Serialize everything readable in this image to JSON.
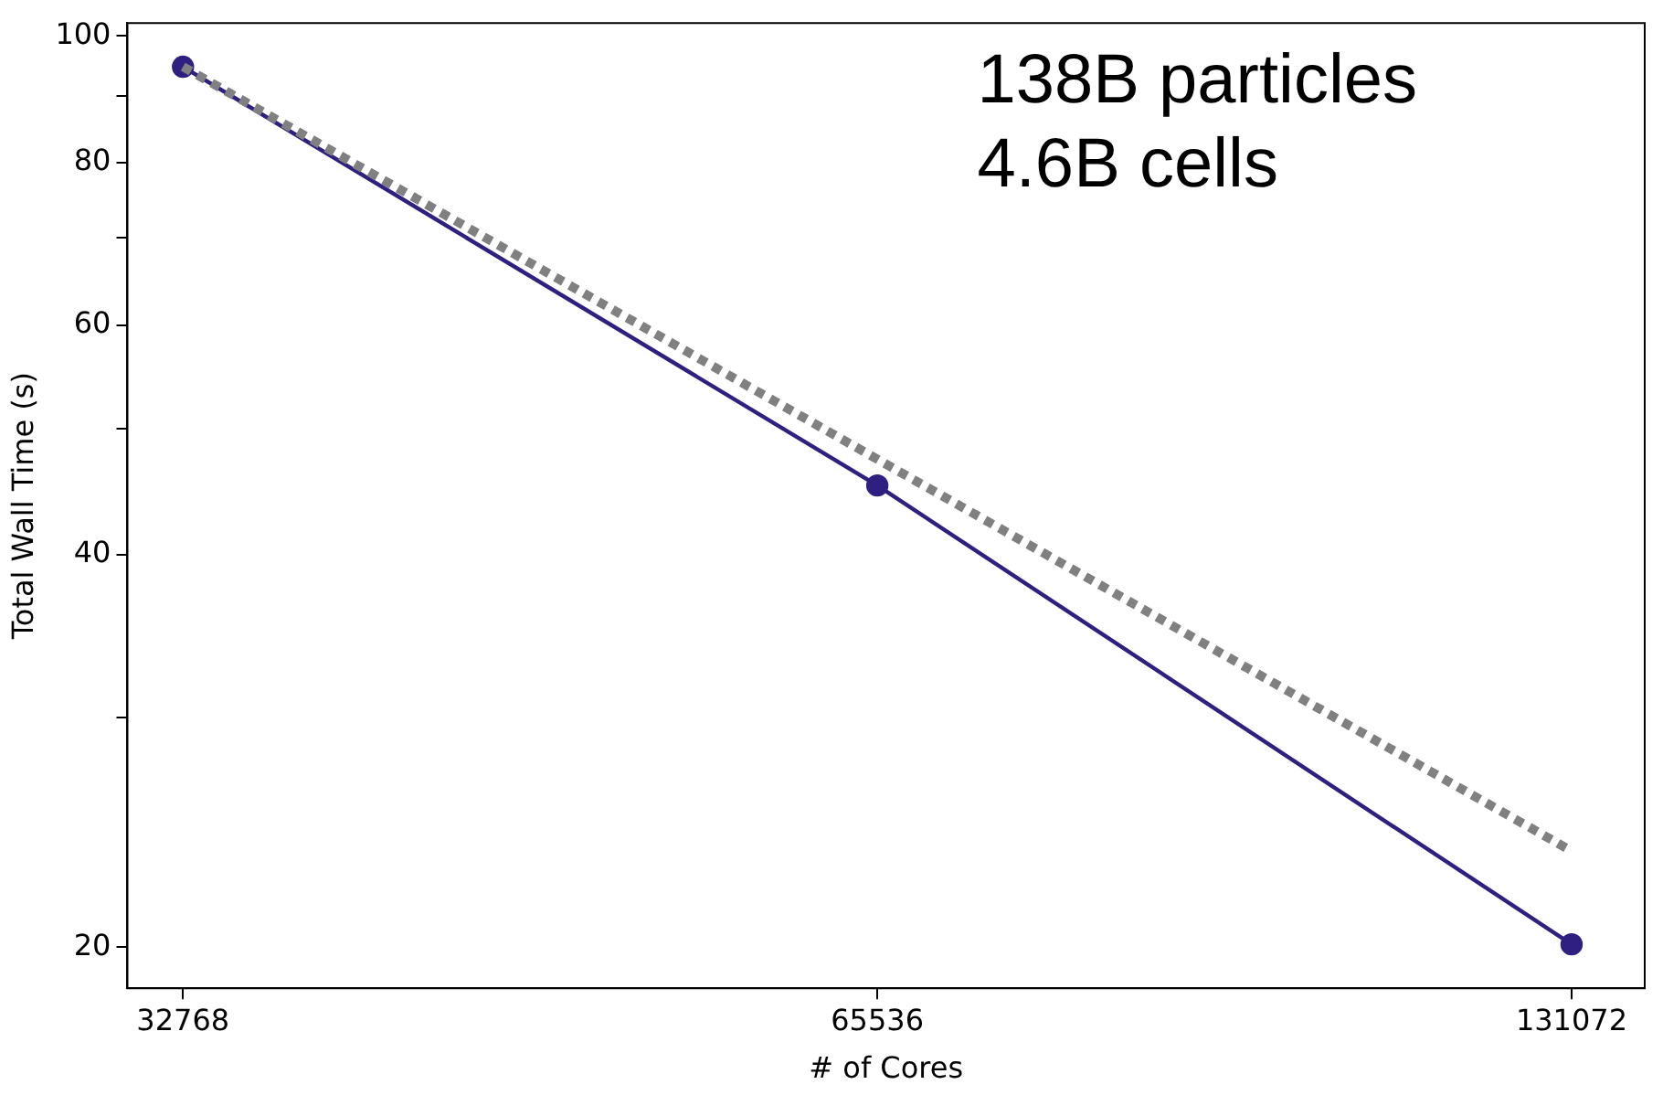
{
  "chart_data": {
    "type": "line",
    "xlabel": "# of Cores",
    "ylabel": "Total Wall Time (s)",
    "log": "xy",
    "grid": false,
    "legend": false,
    "x": [
      32768,
      65536,
      131072
    ],
    "xlim": [
      31000,
      141000
    ],
    "xticks": [
      32768,
      65536,
      131072
    ],
    "ylim": [
      18.6,
      102.3
    ],
    "yticks": [
      20,
      {
        "value": 30,
        "label": null
      },
      40,
      {
        "value": 50,
        "label": null
      },
      60,
      {
        "value": 70,
        "label": null
      },
      80,
      {
        "value": 90,
        "label": null
      },
      100
    ],
    "annotations": [
      "138B particles",
      "4.6B cells"
    ],
    "series": [
      {
        "color": "#2e1f80",
        "values": [
          94.7,
          45.2,
          20.1
        ],
        "marker": "circle",
        "line_style": "solid"
      },
      {
        "color": "#808080",
        "values": [
          94.7,
          47.35,
          23.7
        ],
        "marker": "none",
        "line_style": "dotted"
      }
    ]
  }
}
